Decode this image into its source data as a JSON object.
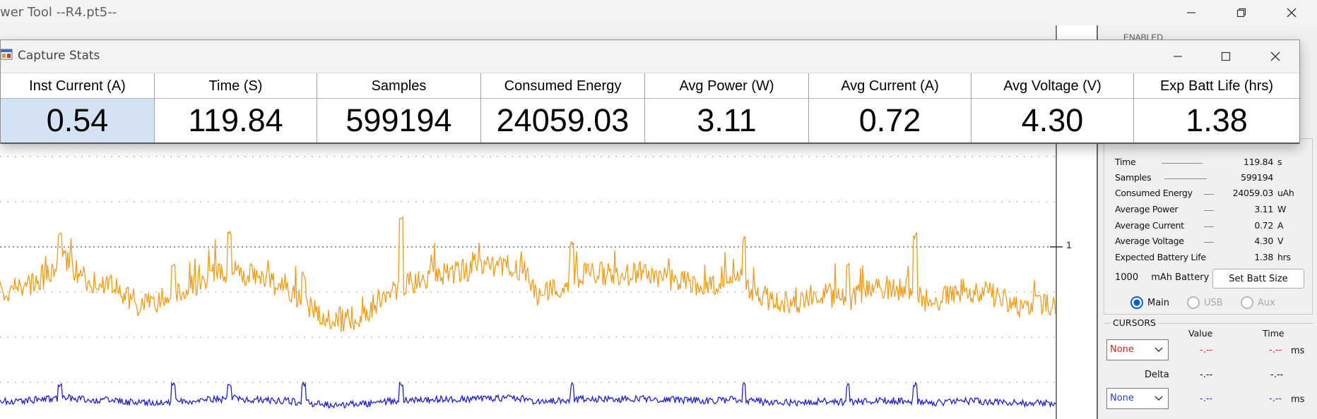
{
  "main_window": {
    "title": "wer Tool --R4.pt5--",
    "partial_status_label": "ENABLED"
  },
  "capture_stats_window": {
    "title": "Capture Stats",
    "columns": [
      {
        "header": "Inst Current (A)",
        "value": "0.54"
      },
      {
        "header": "Time (S)",
        "value": "119.84"
      },
      {
        "header": "Samples",
        "value": "599194"
      },
      {
        "header": "Consumed Energy",
        "value": "24059.03"
      },
      {
        "header": "Avg Power (W)",
        "value": "3.11"
      },
      {
        "header": "Avg Current (A)",
        "value": "0.72"
      },
      {
        "header": "Avg Voltage (V)",
        "value": "4.30"
      },
      {
        "header": "Exp Batt Life (hrs)",
        "value": "1.38"
      }
    ]
  },
  "plot": {
    "y_tick_label": "1",
    "trace_colors": {
      "current": "#f39c1a",
      "voltage": "#1f1fd6"
    }
  },
  "stats_panel": {
    "rows": [
      {
        "label": "Time",
        "value": "119.84",
        "unit": "s"
      },
      {
        "label": "Samples",
        "value": "599194",
        "unit": ""
      },
      {
        "label": "Consumed Energy",
        "value": "24059.03",
        "unit": "uAh"
      },
      {
        "label": "Average Power",
        "value": "3.11",
        "unit": "W"
      },
      {
        "label": "Average Current",
        "value": "0.72",
        "unit": "A"
      },
      {
        "label": "Average Voltage",
        "value": "4.30",
        "unit": "V"
      },
      {
        "label": "Expected Battery Life",
        "value": "1.38",
        "unit": "hrs"
      }
    ],
    "battery": {
      "capacity": "1000",
      "label": "mAh Battery",
      "button": "Set Batt Size"
    },
    "channels": [
      {
        "label": "Main",
        "selected": true
      },
      {
        "label": "USB",
        "selected": false
      },
      {
        "label": "Aux",
        "selected": false
      }
    ]
  },
  "cursors": {
    "title": "CURSORS",
    "value_header": "Value",
    "time_header": "Time",
    "delta_label": "Delta",
    "cursor1": {
      "select": "None",
      "value": "-.--",
      "time": "-.--",
      "unit": "ms",
      "color": "#e02020"
    },
    "delta": {
      "value": "-.--",
      "time": "-.--"
    },
    "cursor2": {
      "select": "None",
      "value": "-.--",
      "time": "-.--",
      "unit": "ms",
      "color": "#1f3fd6"
    }
  }
}
